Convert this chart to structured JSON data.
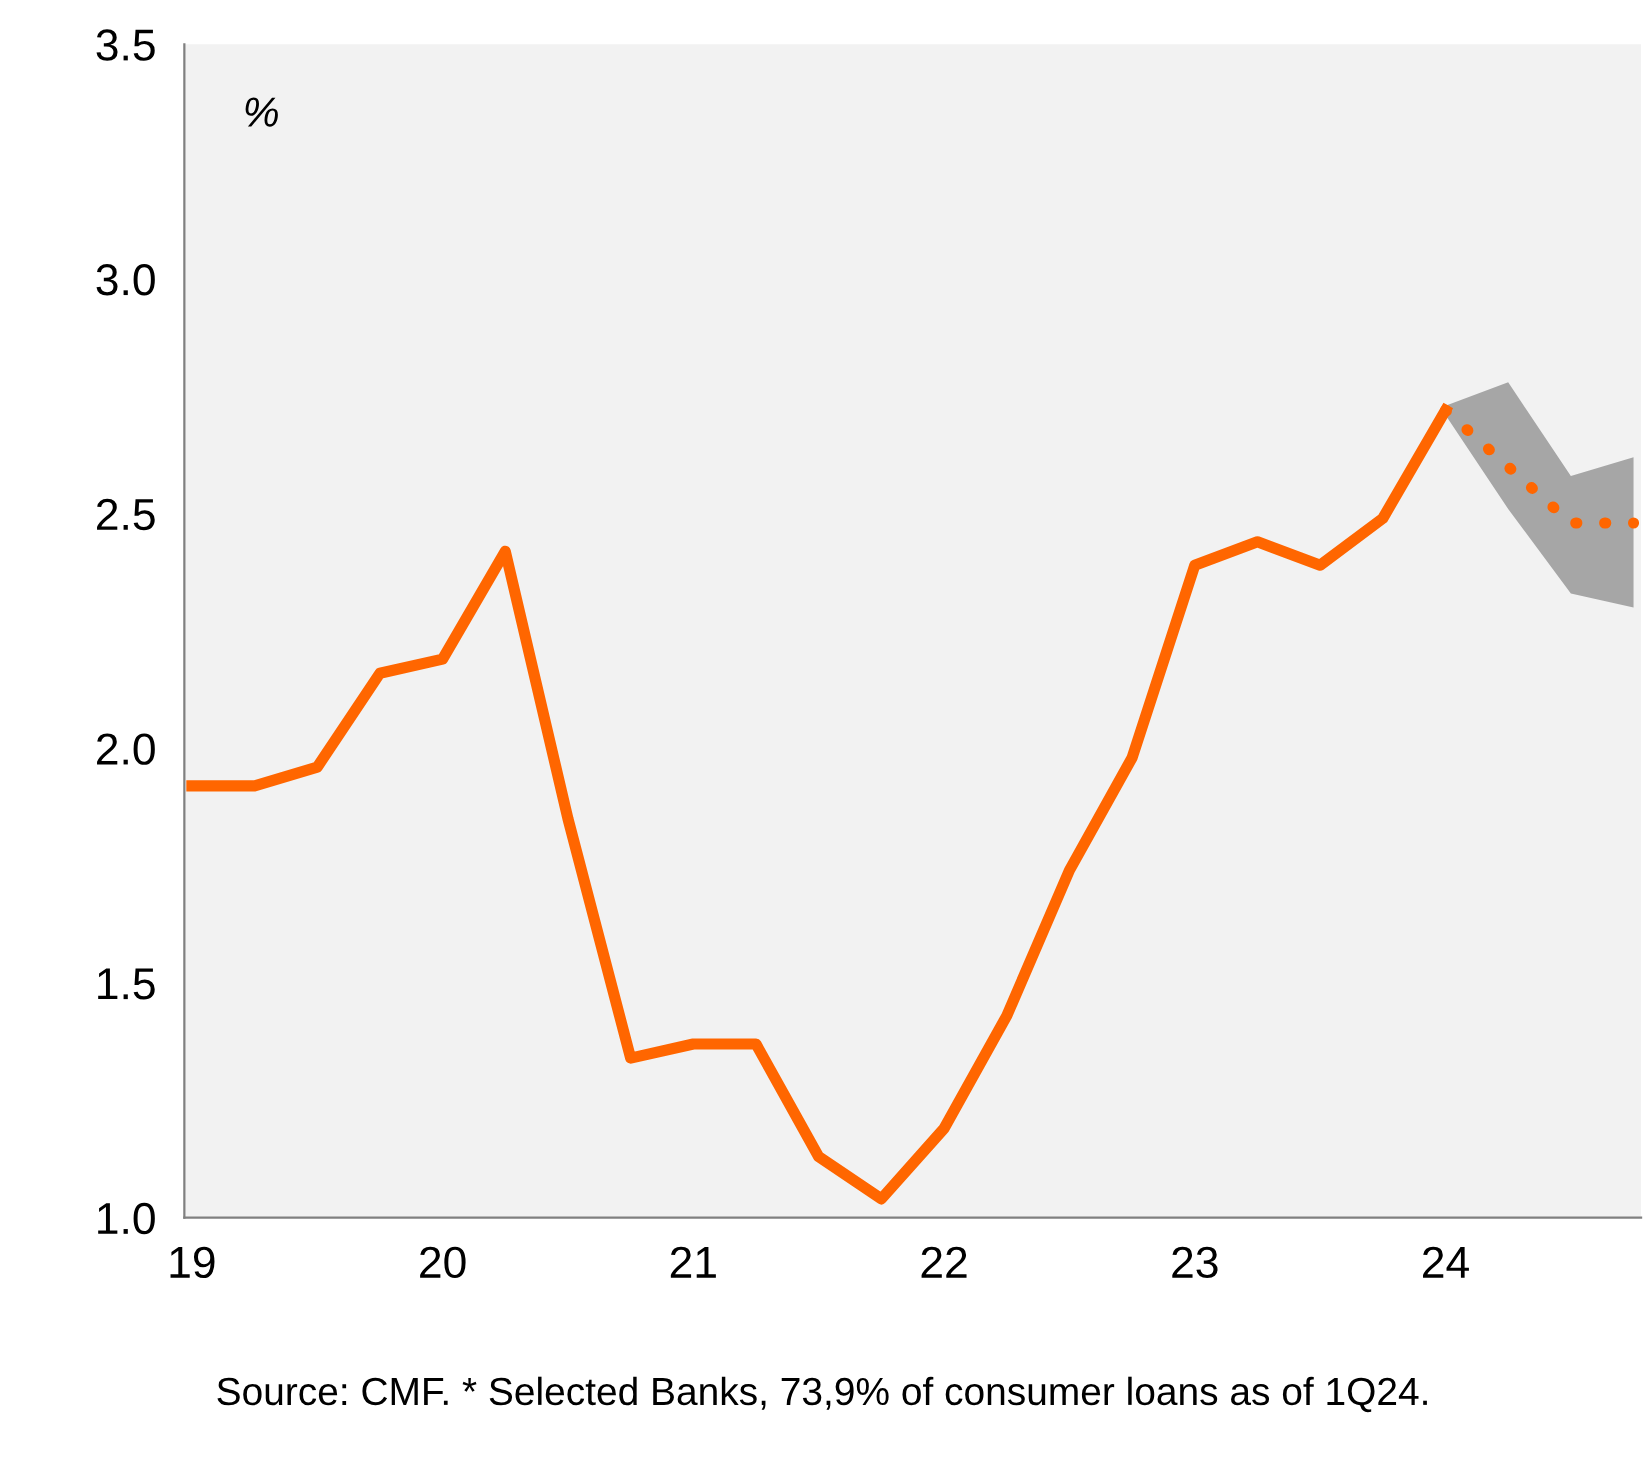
{
  "chart_data": {
    "type": "line",
    "xlim": [
      18.97,
      24.78
    ],
    "xticks": [
      19,
      20,
      21,
      22,
      23,
      24
    ],
    "ylim": [
      1.0,
      3.5
    ],
    "yticks": [
      {
        "value": 1.0,
        "label": "1.0"
      },
      {
        "value": 1.5,
        "label": "1.5"
      },
      {
        "value": 2.0,
        "label": "2.0"
      },
      {
        "value": 2.5,
        "label": "2.5"
      },
      {
        "value": 3.0,
        "label": "3.0"
      },
      {
        "value": 3.5,
        "label": "3.5"
      }
    ],
    "grid": false,
    "legend": false,
    "series": [
      {
        "color": "#ff6600",
        "line_style": "solid",
        "x": [
          19,
          19.25,
          19.5,
          19.75,
          20,
          20.25,
          20.5,
          20.75,
          21,
          21.25,
          21.5,
          21.75,
          22,
          22.25,
          22.5,
          22.75,
          23,
          23.25,
          23.5,
          23.75,
          24
        ],
        "values": [
          1.92,
          1.92,
          1.96,
          2.16,
          2.19,
          2.42,
          1.85,
          1.34,
          1.37,
          1.37,
          1.13,
          1.04,
          1.19,
          1.43,
          1.74,
          1.98,
          2.39,
          2.44,
          2.39,
          2.49,
          2.72
        ]
      },
      {
        "color": "#ff6600",
        "line_style": "dotted",
        "x": [
          24,
          24.25,
          24.5,
          24.75
        ],
        "values": [
          2.72,
          2.6,
          2.48,
          2.48
        ],
        "lower": [
          2.71,
          2.51,
          2.33,
          2.3
        ],
        "upper": [
          2.73,
          2.78,
          2.58,
          2.62
        ]
      }
    ],
    "annotations": [
      "%",
      "Source: CMF. * Selected Banks, 73,9% of consumer loans as of 1Q24."
    ]
  }
}
